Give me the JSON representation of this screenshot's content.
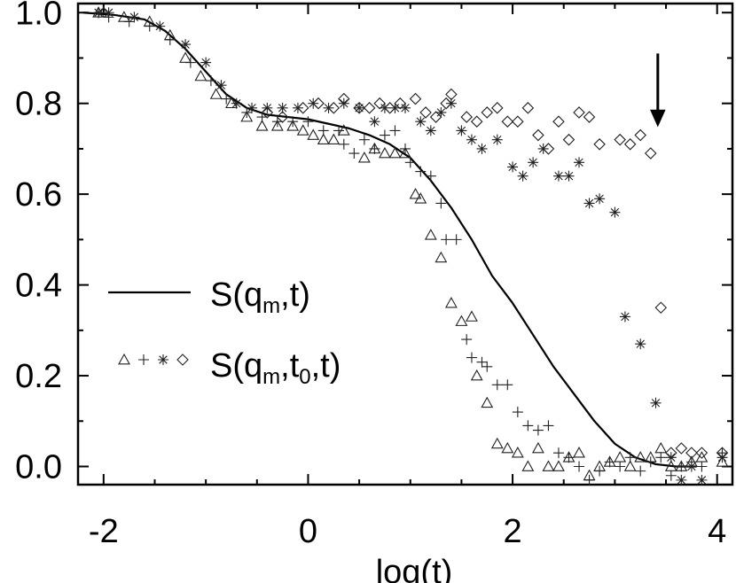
{
  "chart_data": {
    "type": "scatter",
    "title": "",
    "xlabel": "log(t)",
    "ylabel": "",
    "xlim": [
      -2.25,
      4.15
    ],
    "ylim": [
      -0.04,
      1.02
    ],
    "xticks": [
      -2,
      0,
      2,
      4
    ],
    "xtick_labels": [
      "-2",
      "0",
      "2",
      "4"
    ],
    "yticks": [
      0.0,
      0.2,
      0.4,
      0.6,
      0.8,
      1.0
    ],
    "ytick_labels": [
      "0.0",
      "0.2",
      "0.4",
      "0.6",
      "0.8",
      "1.0"
    ],
    "grid": false,
    "legend_position": "center-left",
    "legend": {
      "line": {
        "main": "S(q",
        "sub": "m",
        "tail": ",t)"
      },
      "markers": {
        "main": "S(q",
        "sub1": "m",
        "mid": ",t",
        "sub2": "0",
        "tail": ",t)"
      }
    },
    "annotation": {
      "type": "arrow-down",
      "x": 3.42,
      "y_from": 0.91,
      "y_to": 0.75
    },
    "series": [
      {
        "name": "S(q_m,t)",
        "kind": "line",
        "x": [
          -2.2,
          -1.9,
          -1.6,
          -1.4,
          -1.2,
          -1.0,
          -0.8,
          -0.6,
          -0.4,
          -0.2,
          0.0,
          0.2,
          0.4,
          0.6,
          0.8,
          1.0,
          1.2,
          1.4,
          1.6,
          1.8,
          2.0,
          2.2,
          2.4,
          2.6,
          2.8,
          3.0,
          3.2,
          3.4,
          3.6,
          3.8
        ],
        "y": [
          1.0,
          0.995,
          0.985,
          0.96,
          0.92,
          0.87,
          0.82,
          0.79,
          0.775,
          0.77,
          0.765,
          0.755,
          0.745,
          0.73,
          0.71,
          0.68,
          0.63,
          0.57,
          0.5,
          0.42,
          0.36,
          0.29,
          0.22,
          0.16,
          0.1,
          0.05,
          0.02,
          0.005,
          0.0,
          0.0
        ]
      },
      {
        "name": "triangle",
        "kind": "marker",
        "marker": "triangle",
        "x": [
          -2.05,
          -2.0,
          -1.8,
          -1.55,
          -1.35,
          -1.2,
          -1.05,
          -0.9,
          -0.75,
          -0.6,
          -0.45,
          -0.3,
          -0.15,
          -0.05,
          0.05,
          0.15,
          0.25,
          0.35,
          0.55,
          0.65,
          0.75,
          0.85,
          0.95,
          1.05,
          1.1,
          1.2,
          1.3,
          1.4,
          1.5,
          1.6,
          1.65,
          1.75,
          1.85,
          1.95,
          2.05,
          2.15,
          2.25,
          2.35,
          2.45,
          2.55,
          2.65,
          2.75,
          2.85,
          2.95,
          3.05,
          3.15,
          3.25,
          3.35,
          3.45,
          3.55,
          3.65,
          3.75,
          3.85,
          4.05
        ],
        "y": [
          1.0,
          1.0,
          0.99,
          0.98,
          0.95,
          0.9,
          0.86,
          0.82,
          0.8,
          0.77,
          0.75,
          0.75,
          0.75,
          0.74,
          0.73,
          0.72,
          0.72,
          0.74,
          0.68,
          0.7,
          0.69,
          0.69,
          0.69,
          0.6,
          0.59,
          0.51,
          0.46,
          0.36,
          0.32,
          0.33,
          0.2,
          0.14,
          0.05,
          0.04,
          0.03,
          0.0,
          0.04,
          0.0,
          0.0,
          0.02,
          0.03,
          -0.02,
          0.0,
          0.01,
          0.02,
          0.0,
          0.02,
          0.02,
          0.04,
          0.0,
          0.0,
          0.01,
          0.02,
          0.01
        ]
      },
      {
        "name": "plus",
        "kind": "marker",
        "marker": "plus",
        "x": [
          -2.05,
          -1.95,
          -1.75,
          -1.55,
          -1.35,
          -1.15,
          -0.95,
          -0.8,
          -0.6,
          -0.45,
          -0.3,
          -0.15,
          0.0,
          0.15,
          0.3,
          0.35,
          0.45,
          0.55,
          0.65,
          0.75,
          0.85,
          0.95,
          1.0,
          1.1,
          1.2,
          1.3,
          1.35,
          1.45,
          1.55,
          1.6,
          1.7,
          1.75,
          1.85,
          1.95,
          2.05,
          2.15,
          2.25,
          2.35,
          2.45,
          2.55,
          2.65,
          2.75,
          2.85,
          2.95,
          3.05,
          3.15,
          3.25,
          3.35,
          3.45,
          3.55,
          3.65,
          3.75,
          3.85,
          4.05
        ],
        "y": [
          1.0,
          0.99,
          0.98,
          0.97,
          0.94,
          0.89,
          0.85,
          0.81,
          0.78,
          0.77,
          0.76,
          0.76,
          0.76,
          0.74,
          0.74,
          0.71,
          0.69,
          0.72,
          0.7,
          0.73,
          0.74,
          0.7,
          0.67,
          0.65,
          0.64,
          0.58,
          0.5,
          0.5,
          0.28,
          0.24,
          0.23,
          0.22,
          0.18,
          0.18,
          0.12,
          0.09,
          0.08,
          0.09,
          0.03,
          0.02,
          0.0,
          -0.03,
          -0.01,
          0.01,
          0.0,
          0.02,
          -0.01,
          0.01,
          0.02,
          -0.02,
          0.0,
          0.01,
          0.0,
          0.03
        ]
      },
      {
        "name": "asterisk",
        "kind": "marker",
        "marker": "asterisk",
        "x": [
          -2.05,
          -1.95,
          -1.7,
          -1.45,
          -1.2,
          -1.0,
          -0.85,
          -0.7,
          -0.55,
          -0.4,
          -0.25,
          -0.1,
          0.05,
          0.2,
          0.35,
          0.5,
          0.65,
          0.75,
          0.85,
          0.95,
          1.1,
          1.2,
          1.3,
          1.4,
          1.5,
          1.6,
          1.7,
          1.85,
          2.0,
          2.1,
          2.2,
          2.3,
          2.45,
          2.55,
          2.65,
          2.75,
          2.85,
          3.0,
          3.1,
          3.25,
          3.4,
          3.55,
          3.65,
          3.75,
          3.85,
          4.05
        ],
        "y": [
          1.0,
          1.0,
          0.99,
          0.97,
          0.93,
          0.89,
          0.84,
          0.8,
          0.79,
          0.79,
          0.79,
          0.79,
          0.8,
          0.79,
          0.8,
          0.79,
          0.76,
          0.79,
          0.79,
          0.79,
          0.76,
          0.74,
          0.78,
          0.8,
          0.74,
          0.72,
          0.7,
          0.72,
          0.66,
          0.64,
          0.67,
          0.7,
          0.64,
          0.64,
          0.67,
          0.58,
          0.59,
          0.56,
          0.33,
          0.27,
          0.14,
          0.02,
          -0.03,
          0.0,
          -0.03,
          0.02
        ]
      },
      {
        "name": "diamond",
        "kind": "marker",
        "marker": "diamond",
        "x": [
          -0.4,
          -0.25,
          -0.05,
          0.1,
          0.25,
          0.35,
          0.5,
          0.6,
          0.7,
          0.8,
          0.9,
          1.05,
          1.15,
          1.25,
          1.35,
          1.4,
          1.55,
          1.65,
          1.75,
          1.85,
          1.95,
          2.05,
          2.15,
          2.25,
          2.35,
          2.45,
          2.55,
          2.65,
          2.75,
          2.85,
          3.05,
          3.15,
          3.25,
          3.35,
          3.45,
          3.55,
          3.65,
          3.75,
          3.85,
          4.05
        ],
        "y": [
          0.78,
          0.77,
          0.79,
          0.8,
          0.79,
          0.81,
          0.79,
          0.79,
          0.8,
          0.79,
          0.8,
          0.81,
          0.78,
          0.77,
          0.8,
          0.82,
          0.77,
          0.76,
          0.78,
          0.79,
          0.76,
          0.76,
          0.79,
          0.73,
          0.7,
          0.76,
          0.72,
          0.78,
          0.77,
          0.71,
          0.72,
          0.71,
          0.73,
          0.69,
          0.35,
          0.03,
          0.04,
          0.03,
          0.03,
          0.03
        ]
      }
    ]
  }
}
